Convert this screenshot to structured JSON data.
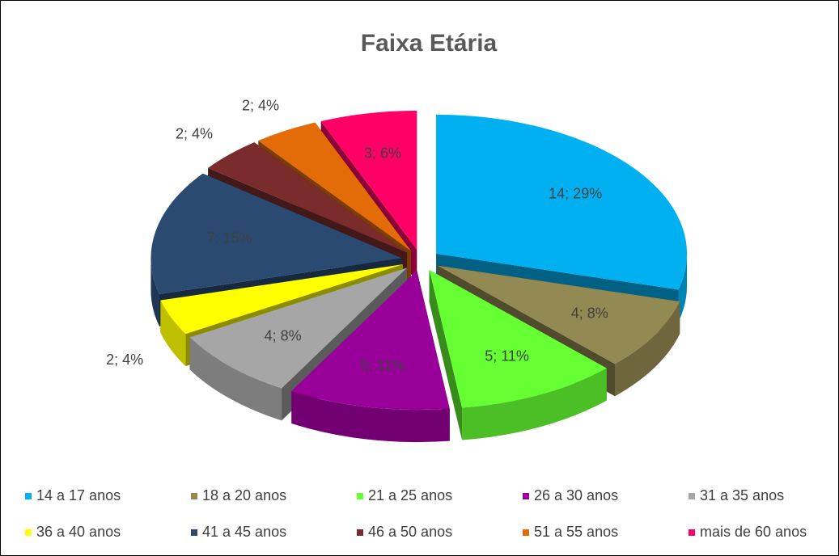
{
  "chart_data": {
    "type": "pie3d",
    "title": "Faixa Etária",
    "categories": [
      "14 a 17 anos",
      "18 a 20 anos",
      "21 a 25 anos",
      "26 a 30 anos",
      "31 a 35 anos",
      "36 a 40 anos",
      "41 a 45 anos",
      "46 a 50 anos",
      "51 a 55 anos",
      "mais de 60 anos"
    ],
    "values": [
      14,
      4,
      5,
      5,
      4,
      2,
      7,
      2,
      2,
      3
    ],
    "value_labels": [
      "14; 29%",
      "4; 8%",
      "5; 11%",
      "5; 11%",
      "4; 8%",
      "2; 4%",
      "7; 15%",
      "2; 4%",
      "2; 4%",
      "3; 6%"
    ],
    "colors": [
      "#00b0f0",
      "#938953",
      "#66ff33",
      "#990099",
      "#a6a6a6",
      "#ffff00",
      "#2a4a72",
      "#7a2b2b",
      "#e36c09",
      "#ff0066"
    ],
    "legend": "bottom"
  }
}
